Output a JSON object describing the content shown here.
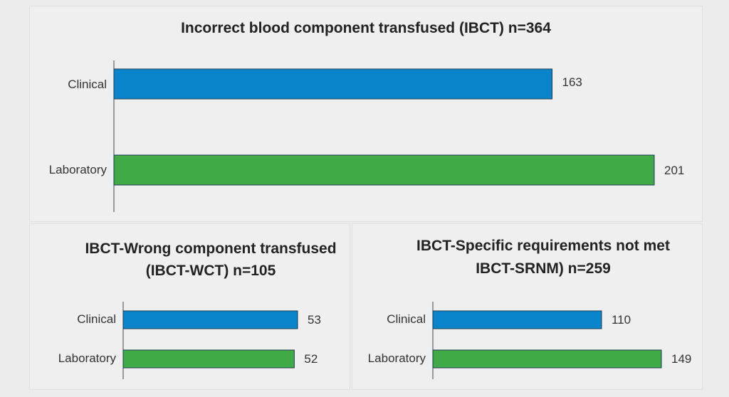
{
  "colors": {
    "clinical": "#0a85cc",
    "laboratory": "#3faa46",
    "bar_border": "#1e3a52"
  },
  "chart_data": [
    {
      "type": "bar",
      "orientation": "horizontal",
      "title": "Incorrect blood component transfused (IBCT) n=364",
      "categories": [
        "Clinical",
        "Laboratory"
      ],
      "values": [
        163,
        201
      ]
    },
    {
      "type": "bar",
      "orientation": "horizontal",
      "title": [
        "IBCT-Wrong component transfused",
        "(IBCT-WCT) n=105"
      ],
      "categories": [
        "Clinical",
        "Laboratory"
      ],
      "values": [
        53,
        52
      ]
    },
    {
      "type": "bar",
      "orientation": "horizontal",
      "title": [
        "IBCT-Specific requirements not met",
        "IBCT-SRNM) n=259"
      ],
      "categories": [
        "Clinical",
        "Laboratory"
      ],
      "values": [
        110,
        149
      ]
    }
  ]
}
